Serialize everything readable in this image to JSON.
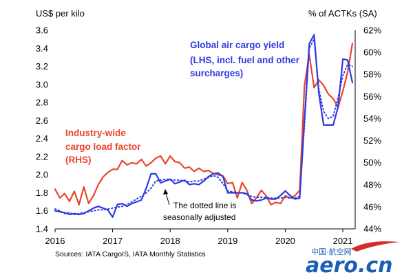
{
  "chart_data": {
    "type": "line",
    "title": "",
    "left_axis": {
      "title": "US$ per kilo",
      "range": [
        1.4,
        3.6
      ],
      "ticks": [
        "1.4",
        "1.6",
        "1.8",
        "2.0",
        "2.2",
        "2.4",
        "2.6",
        "2.8",
        "3.0",
        "3.2",
        "3.4",
        "3.6"
      ]
    },
    "right_axis": {
      "title": "% of ACTKs (SA)",
      "range": [
        44,
        62
      ],
      "ticks": [
        "44%",
        "46%",
        "48%",
        "50%",
        "52%",
        "54%",
        "56%",
        "58%",
        "60%",
        "62%"
      ]
    },
    "x_axis": {
      "ticks": [
        "2016",
        "2017",
        "2018",
        "2019",
        "2020",
        "2021"
      ],
      "range_months": [
        0,
        62
      ]
    },
    "grid": false,
    "series": [
      {
        "key": "load_factor",
        "axis": "right",
        "color": "#e8452c",
        "style": "solid",
        "values": [
          47.6,
          46.8,
          47.2,
          46.5,
          47.4,
          46.2,
          47.8,
          46.3,
          47.0,
          48.0,
          48.7,
          49.1,
          49.4,
          49.4,
          50.2,
          49.8,
          50.0,
          49.9,
          50.3,
          49.7,
          50.0,
          50.4,
          50.6,
          49.9,
          50.6,
          50.1,
          50.0,
          49.5,
          49.6,
          49.2,
          49.5,
          49.2,
          49.3,
          49.0,
          48.9,
          48.8,
          48.1,
          48.2,
          46.8,
          48.2,
          47.5,
          46.3,
          46.8,
          47.5,
          47.0,
          46.2,
          46.4,
          46.3,
          47.0,
          46.8,
          47.0,
          47.5,
          57.0,
          59.8,
          56.8,
          57.5,
          57.0,
          56.2,
          55.8,
          55.0,
          56.5,
          58.2,
          60.8
        ]
      },
      {
        "key": "yield",
        "axis": "left",
        "color": "#2e3be0",
        "style": "solid",
        "values": [
          1.6,
          1.59,
          1.58,
          1.56,
          1.57,
          1.56,
          1.57,
          1.6,
          1.63,
          1.65,
          1.63,
          1.61,
          1.53,
          1.67,
          1.68,
          1.65,
          1.68,
          1.7,
          1.72,
          1.85,
          2.01,
          2.01,
          1.91,
          1.93,
          1.95,
          1.9,
          1.92,
          1.94,
          1.89,
          1.9,
          1.89,
          1.93,
          1.98,
          2.01,
          2.02,
          1.98,
          1.8,
          1.8,
          1.8,
          1.8,
          1.79,
          1.72,
          1.71,
          1.72,
          1.74,
          1.73,
          1.73,
          1.77,
          1.82,
          1.77,
          1.73,
          1.74,
          2.6,
          3.45,
          3.55,
          2.9,
          2.55,
          2.55,
          2.55,
          2.75,
          3.28,
          3.27,
          3.02
        ]
      },
      {
        "key": "yield_sa",
        "axis": "left",
        "color": "#2e3be0",
        "style": "dotted",
        "values": [
          1.62,
          1.6,
          1.57,
          1.58,
          1.56,
          1.57,
          1.58,
          1.59,
          1.6,
          1.61,
          1.61,
          1.62,
          1.63,
          1.64,
          1.65,
          1.67,
          1.7,
          1.73,
          1.76,
          1.8,
          1.85,
          1.93,
          1.94,
          1.95,
          1.95,
          1.94,
          1.94,
          1.93,
          1.92,
          1.93,
          1.93,
          1.95,
          1.97,
          1.99,
          1.97,
          1.9,
          1.82,
          1.81,
          1.8,
          1.8,
          1.78,
          1.76,
          1.75,
          1.75,
          1.75,
          1.74,
          1.74,
          1.74,
          1.75,
          1.74,
          1.74,
          1.76,
          2.55,
          3.4,
          3.5,
          2.95,
          2.7,
          2.62,
          2.65,
          2.85,
          3.1,
          3.22,
          3.2
        ]
      }
    ],
    "annotations": {
      "yield_label": [
        "Global air cargo yield",
        "(LHS, incl. fuel and other",
        "surcharges)"
      ],
      "load_factor_label": [
        "Industry-wide",
        "cargo load factor",
        "(RHS)"
      ],
      "sa_note": [
        "The dotted line is",
        "seasonally adjusted"
      ]
    },
    "source": "Sources: IATA CargoIS, IATA Monthly Statistics"
  },
  "watermark": {
    "small_text": "中国·航空网",
    "big_text": "aero.cn"
  }
}
